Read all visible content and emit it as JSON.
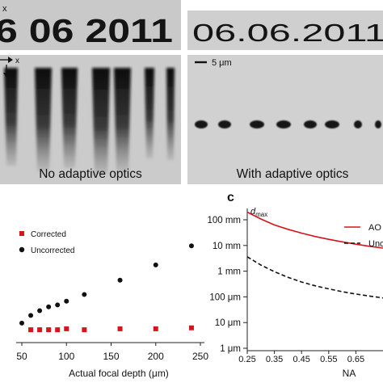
{
  "top_left": {
    "axis_label": "x",
    "stamp_text": "6 06 2011",
    "caption": "No adaptive optics"
  },
  "top_right": {
    "stamp_text": "06.06.2011",
    "scalebar_label": "5 μm",
    "caption": "With adaptive optics"
  },
  "xz_axis_label": "x",
  "panel_c_letter": "c",
  "chart_data": [
    {
      "type": "scatter",
      "title": "",
      "xlabel": "Actual focal depth (μm)",
      "ylabel": "",
      "xlim": [
        40,
        250
      ],
      "ylim": [
        0,
        1
      ],
      "x_ticks": [
        50,
        100,
        150,
        200,
        250
      ],
      "grid": false,
      "legend": "top-left",
      "series": [
        {
          "name": "Corrected",
          "color": "#d7141a",
          "marker": "square",
          "x": [
            60,
            70,
            80,
            90,
            100,
            120,
            160,
            200,
            240
          ],
          "y": [
            0.05,
            0.05,
            0.05,
            0.05,
            0.06,
            0.05,
            0.06,
            0.06,
            0.07
          ]
        },
        {
          "name": "Uncorrected",
          "color": "#111111",
          "marker": "circle",
          "x": [
            50,
            60,
            70,
            80,
            90,
            100,
            120,
            160,
            200,
            240
          ],
          "y": [
            0.12,
            0.2,
            0.25,
            0.29,
            0.31,
            0.35,
            0.42,
            0.57,
            0.73,
            0.93
          ]
        }
      ]
    },
    {
      "type": "line",
      "title": "",
      "ylabel_main": "d",
      "ylabel_sub": "max",
      "xlabel": "NA",
      "xlim": [
        0.25,
        0.75
      ],
      "x_ticks": [
        0.25,
        0.35,
        0.45,
        0.55,
        0.65
      ],
      "y_scale": "log",
      "y_ticks": [
        {
          "label": "100 mm",
          "exp": -1
        },
        {
          "label": "10 mm",
          "exp": -2
        },
        {
          "label": "1 mm",
          "exp": -3
        },
        {
          "label": "100 μm",
          "exp": -4
        },
        {
          "label": "10 μm",
          "exp": -5
        },
        {
          "label": "1 μm",
          "exp": -6
        }
      ],
      "legend": "top-right",
      "series": [
        {
          "name": "AO",
          "color": "#d7141a",
          "dash": "solid",
          "x": [
            0.25,
            0.3,
            0.35,
            0.4,
            0.45,
            0.5,
            0.55,
            0.6,
            0.65,
            0.7,
            0.75
          ],
          "log10_m": [
            -0.7,
            -0.97,
            -1.2,
            -1.37,
            -1.52,
            -1.65,
            -1.76,
            -1.86,
            -1.95,
            -2.03,
            -2.1
          ]
        },
        {
          "name": "Unc",
          "color": "#111111",
          "dash": "dashed",
          "x": [
            0.25,
            0.3,
            0.35,
            0.4,
            0.45,
            0.5,
            0.55,
            0.6,
            0.65,
            0.7,
            0.75
          ],
          "log10_m": [
            -2.44,
            -2.76,
            -3.02,
            -3.24,
            -3.42,
            -3.57,
            -3.69,
            -3.8,
            -3.89,
            -3.97,
            -4.04
          ]
        }
      ]
    }
  ]
}
